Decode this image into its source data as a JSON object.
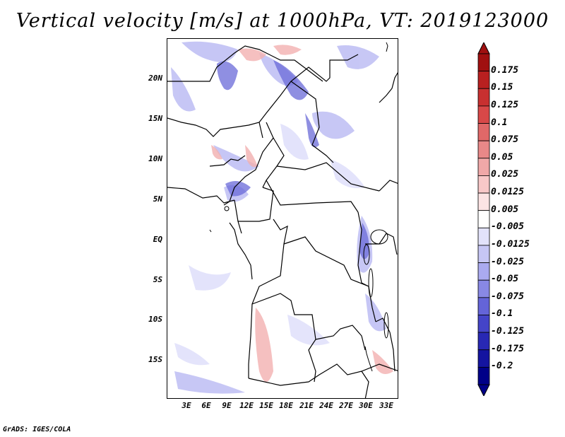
{
  "title": "Vertical velocity [m/s] at 1000hPa, VT: 2019123000",
  "credit": "GrADS: IGES/COLA",
  "map": {
    "lat_labels": [
      "20N",
      "15N",
      "10N",
      "5N",
      "EQ",
      "5S",
      "10S",
      "15S"
    ],
    "lon_labels": [
      "3E",
      "6E",
      "9E",
      "12E",
      "15E",
      "18E",
      "21E",
      "24E",
      "27E",
      "30E",
      "33E"
    ]
  },
  "colorbar": {
    "labels": [
      "0.175",
      "0.15",
      "0.125",
      "0.1",
      "0.075",
      "0.05",
      "0.025",
      "0.0125",
      "0.005",
      "-0.005",
      "-0.0125",
      "-0.025",
      "-0.05",
      "-0.075",
      "-0.1",
      "-0.125",
      "-0.175",
      "-0.2"
    ],
    "colors": [
      "#a01010",
      "#b82020",
      "#c83030",
      "#d84848",
      "#e06868",
      "#e88888",
      "#f0a8a8",
      "#f8c8c8",
      "#fce4e4",
      "#ffffff",
      "#e2e2fa",
      "#c6c6f4",
      "#aaaaf0",
      "#8888e4",
      "#6464d8",
      "#4444c8",
      "#2828b4",
      "#1414a0",
      "#000088"
    ]
  },
  "colors": {
    "upward_shade": "#9999ee",
    "downward_shade": "#f4b4b4",
    "border": "#000000"
  }
}
